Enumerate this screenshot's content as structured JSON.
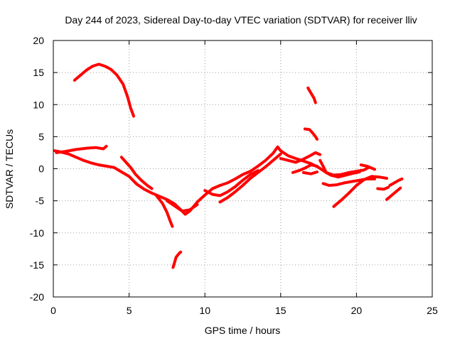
{
  "chart_data": {
    "type": "line",
    "title": "Day 244 of 2023, Sidereal Day-to-day VTEC variation (SDTVAR) for receiver lliv",
    "xlabel": "GPS time / hours",
    "ylabel": "SDTVAR / TECUs",
    "xlim": [
      0,
      25
    ],
    "ylim": [
      -20,
      20
    ],
    "xticks": [
      0,
      5,
      10,
      15,
      20,
      25
    ],
    "yticks": [
      -20,
      -15,
      -10,
      -5,
      0,
      5,
      10,
      15,
      20
    ],
    "xtick_labels": [
      "0",
      "5",
      "10",
      "15",
      "20",
      "25"
    ],
    "ytick_labels": [
      "-20",
      "-15",
      "-10",
      "-5",
      "0",
      "5",
      "10",
      "15",
      "20"
    ],
    "grid": true,
    "color": "#ff0000",
    "series": [
      {
        "name": "trace-1",
        "points": [
          [
            1.4,
            13.8
          ],
          [
            1.8,
            14.6
          ],
          [
            2.2,
            15.4
          ],
          [
            2.6,
            16.0
          ],
          [
            3.0,
            16.3
          ],
          [
            3.4,
            16.0
          ],
          [
            3.8,
            15.5
          ],
          [
            4.2,
            14.6
          ],
          [
            4.6,
            13.2
          ],
          [
            4.9,
            11.2
          ],
          [
            5.1,
            9.5
          ],
          [
            5.3,
            8.2
          ]
        ]
      },
      {
        "name": "trace-2",
        "points": [
          [
            0.1,
            2.8
          ],
          [
            0.5,
            2.6
          ],
          [
            1.0,
            2.3
          ],
          [
            1.5,
            1.8
          ],
          [
            2.0,
            1.3
          ],
          [
            2.5,
            0.9
          ],
          [
            3.0,
            0.6
          ],
          [
            3.5,
            0.4
          ],
          [
            4.0,
            0.2
          ],
          [
            4.5,
            -0.5
          ],
          [
            5.0,
            -1.2
          ],
          [
            5.5,
            -2.4
          ],
          [
            6.0,
            -3.2
          ],
          [
            6.5,
            -3.8
          ],
          [
            7.0,
            -4.3
          ],
          [
            7.5,
            -4.8
          ],
          [
            8.0,
            -5.5
          ],
          [
            8.5,
            -6.6
          ],
          [
            8.7,
            -7.1
          ],
          [
            9.0,
            -6.6
          ],
          [
            9.5,
            -5.2
          ],
          [
            10.0,
            -4.1
          ],
          [
            10.5,
            -3.1
          ],
          [
            11.0,
            -2.6
          ],
          [
            11.5,
            -2.2
          ],
          [
            12.0,
            -1.6
          ],
          [
            12.5,
            -0.9
          ],
          [
            13.0,
            -0.4
          ],
          [
            13.5,
            0.4
          ],
          [
            14.0,
            1.3
          ],
          [
            14.5,
            2.4
          ],
          [
            14.8,
            3.4
          ],
          [
            15.0,
            2.8
          ],
          [
            15.5,
            2.0
          ],
          [
            16.0,
            1.6
          ],
          [
            16.5,
            1.2
          ],
          [
            17.0,
            0.8
          ],
          [
            17.5,
            0.2
          ],
          [
            18.0,
            -0.6
          ],
          [
            18.5,
            -1.0
          ],
          [
            19.0,
            -0.9
          ],
          [
            19.5,
            -0.6
          ],
          [
            20.0,
            -0.4
          ],
          [
            20.5,
            -0.2
          ],
          [
            20.8,
            0.2
          ]
        ]
      },
      {
        "name": "trace-3",
        "points": [
          [
            0.2,
            2.5
          ],
          [
            0.8,
            2.7
          ],
          [
            1.5,
            3.0
          ],
          [
            2.2,
            3.2
          ],
          [
            2.8,
            3.3
          ],
          [
            3.3,
            3.1
          ],
          [
            3.5,
            3.5
          ]
        ]
      },
      {
        "name": "trace-4",
        "points": [
          [
            4.5,
            1.8
          ],
          [
            4.8,
            1.0
          ],
          [
            5.1,
            0.2
          ],
          [
            5.4,
            -0.8
          ],
          [
            5.8,
            -1.8
          ],
          [
            6.2,
            -2.6
          ],
          [
            6.5,
            -3.1
          ]
        ]
      },
      {
        "name": "trace-5",
        "points": [
          [
            6.8,
            -4.2
          ],
          [
            7.2,
            -5.4
          ],
          [
            7.5,
            -6.8
          ],
          [
            7.7,
            -8.1
          ],
          [
            7.85,
            -9.0
          ]
        ]
      },
      {
        "name": "trace-6",
        "points": [
          [
            7.9,
            -15.4
          ],
          [
            8.0,
            -14.6
          ],
          [
            8.1,
            -13.8
          ],
          [
            8.3,
            -13.2
          ],
          [
            8.4,
            -13.0
          ]
        ]
      },
      {
        "name": "trace-7",
        "points": [
          [
            7.5,
            -5.0
          ],
          [
            8.0,
            -5.8
          ],
          [
            8.5,
            -6.6
          ],
          [
            9.0,
            -6.4
          ],
          [
            9.5,
            -5.6
          ]
        ]
      },
      {
        "name": "trace-8",
        "points": [
          [
            10.0,
            -3.4
          ],
          [
            10.5,
            -4.0
          ],
          [
            11.0,
            -4.2
          ],
          [
            11.5,
            -3.6
          ],
          [
            12.0,
            -2.8
          ],
          [
            12.5,
            -1.8
          ],
          [
            13.0,
            -0.9
          ],
          [
            13.5,
            -0.3
          ]
        ]
      },
      {
        "name": "trace-9",
        "points": [
          [
            11.0,
            -5.2
          ],
          [
            11.5,
            -4.5
          ],
          [
            12.0,
            -3.6
          ],
          [
            12.5,
            -2.6
          ],
          [
            13.0,
            -1.5
          ],
          [
            13.5,
            -0.6
          ],
          [
            14.0,
            0.3
          ],
          [
            14.5,
            1.3
          ],
          [
            15.0,
            2.3
          ]
        ]
      },
      {
        "name": "trace-10",
        "points": [
          [
            15.0,
            1.6
          ],
          [
            15.5,
            1.3
          ],
          [
            16.0,
            1.0
          ],
          [
            16.5,
            1.5
          ],
          [
            17.0,
            2.1
          ],
          [
            17.3,
            2.5
          ],
          [
            17.6,
            2.2
          ]
        ]
      },
      {
        "name": "trace-11",
        "points": [
          [
            15.8,
            -0.6
          ],
          [
            16.2,
            -0.3
          ],
          [
            16.6,
            0.1
          ],
          [
            17.0,
            0.6
          ],
          [
            17.4,
            0.4
          ]
        ]
      },
      {
        "name": "trace-12",
        "points": [
          [
            16.5,
            -0.6
          ],
          [
            17.0,
            -0.8
          ],
          [
            17.4,
            -0.5
          ]
        ]
      },
      {
        "name": "trace-13",
        "points": [
          [
            16.6,
            6.2
          ],
          [
            16.9,
            6.1
          ],
          [
            17.1,
            5.6
          ],
          [
            17.3,
            5.0
          ],
          [
            17.4,
            4.6
          ]
        ]
      },
      {
        "name": "trace-14",
        "points": [
          [
            16.8,
            12.6
          ],
          [
            17.0,
            11.8
          ],
          [
            17.2,
            11.0
          ],
          [
            17.3,
            10.3
          ]
        ]
      },
      {
        "name": "trace-15",
        "points": [
          [
            17.6,
            1.3
          ],
          [
            17.8,
            0.4
          ],
          [
            18.0,
            -0.6
          ],
          [
            18.3,
            -1.0
          ],
          [
            18.8,
            -1.3
          ],
          [
            19.3,
            -1.0
          ],
          [
            19.8,
            -0.7
          ],
          [
            20.2,
            -0.5
          ]
        ]
      },
      {
        "name": "trace-16",
        "points": [
          [
            17.8,
            -2.3
          ],
          [
            18.2,
            -2.6
          ],
          [
            18.7,
            -2.5
          ],
          [
            19.2,
            -2.2
          ],
          [
            19.7,
            -2.0
          ],
          [
            20.2,
            -1.8
          ],
          [
            20.7,
            -1.6
          ],
          [
            21.2,
            -1.6
          ]
        ]
      },
      {
        "name": "trace-17",
        "points": [
          [
            18.5,
            -5.9
          ],
          [
            19.0,
            -4.9
          ],
          [
            19.5,
            -3.8
          ],
          [
            20.0,
            -2.6
          ],
          [
            20.5,
            -1.7
          ],
          [
            21.0,
            -1.2
          ],
          [
            21.5,
            -1.3
          ],
          [
            22.0,
            -1.5
          ]
        ]
      },
      {
        "name": "trace-18",
        "points": [
          [
            20.3,
            0.6
          ],
          [
            20.7,
            0.4
          ],
          [
            21.0,
            0.1
          ],
          [
            21.2,
            -0.1
          ]
        ]
      },
      {
        "name": "trace-19",
        "points": [
          [
            21.4,
            -3.1
          ],
          [
            21.8,
            -3.2
          ],
          [
            22.1,
            -2.9
          ]
        ]
      },
      {
        "name": "trace-20",
        "points": [
          [
            22.0,
            -4.8
          ],
          [
            22.3,
            -4.2
          ],
          [
            22.6,
            -3.6
          ],
          [
            22.9,
            -3.0
          ]
        ]
      },
      {
        "name": "trace-21",
        "points": [
          [
            22.2,
            -2.6
          ],
          [
            22.5,
            -2.2
          ],
          [
            22.8,
            -1.8
          ],
          [
            23.0,
            -1.6
          ]
        ]
      }
    ]
  }
}
